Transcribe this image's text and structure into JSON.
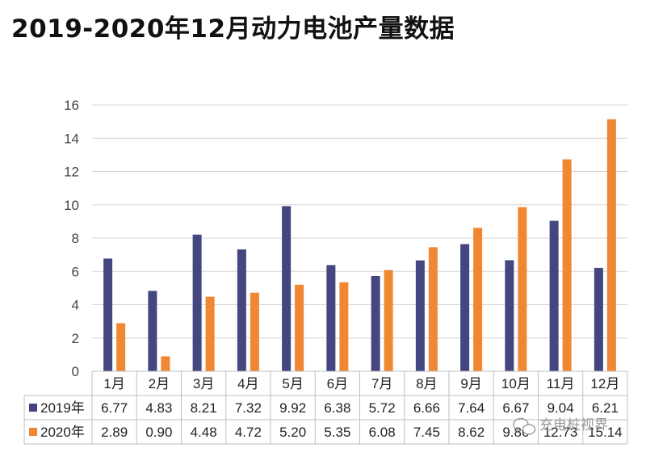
{
  "title": "2019-2020年12月动力电池产量数据",
  "watermark": "充电桩视界",
  "colors": {
    "s2019": "#44467f",
    "s2020": "#ef8733",
    "grid": "#d4d4d4",
    "table_border": "#bfbfbf"
  },
  "chart_data": {
    "type": "bar",
    "title": "2019-2020年12月动力电池产量数据",
    "categories": [
      "1月",
      "2月",
      "3月",
      "4月",
      "5月",
      "6月",
      "7月",
      "8月",
      "9月",
      "10月",
      "11月",
      "12月"
    ],
    "series": [
      {
        "name": "2019年",
        "values": [
          6.77,
          4.83,
          8.21,
          7.32,
          9.92,
          6.38,
          5.72,
          6.66,
          7.64,
          6.67,
          9.04,
          6.21
        ],
        "labels": [
          "6.77",
          "4.83",
          "8.21",
          "7.32",
          "9.92",
          "6.38",
          "5.72",
          "6.66",
          "7.64",
          "6.67",
          "9.04",
          "6.21"
        ]
      },
      {
        "name": "2020年",
        "values": [
          2.89,
          0.9,
          4.48,
          4.72,
          5.2,
          5.35,
          6.08,
          7.45,
          8.62,
          9.86,
          12.73,
          15.14
        ],
        "labels": [
          "2.89",
          "0.90",
          "4.48",
          "4.72",
          "5.20",
          "5.35",
          "6.08",
          "7.45",
          "8.62",
          "9.86",
          "12.73",
          "15.14"
        ]
      }
    ],
    "ylim": [
      0,
      16
    ],
    "yticks": [
      "0",
      "2",
      "4",
      "6",
      "8",
      "10",
      "12",
      "14",
      "16"
    ],
    "grid": true,
    "legend": "data-table"
  }
}
